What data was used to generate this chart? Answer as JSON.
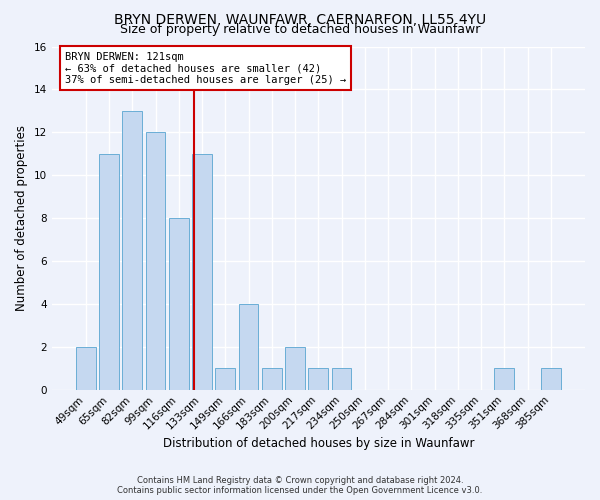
{
  "title": "BRYN DERWEN, WAUNFAWR, CAERNARFON, LL55 4YU",
  "subtitle": "Size of property relative to detached houses in Waunfawr",
  "xlabel": "Distribution of detached houses by size in Waunfawr",
  "ylabel": "Number of detached properties",
  "bar_labels": [
    "49sqm",
    "65sqm",
    "82sqm",
    "99sqm",
    "116sqm",
    "133sqm",
    "149sqm",
    "166sqm",
    "183sqm",
    "200sqm",
    "217sqm",
    "234sqm",
    "250sqm",
    "267sqm",
    "284sqm",
    "301sqm",
    "318sqm",
    "335sqm",
    "351sqm",
    "368sqm",
    "385sqm"
  ],
  "bar_values": [
    2,
    11,
    13,
    12,
    8,
    11,
    1,
    4,
    1,
    2,
    1,
    1,
    0,
    0,
    0,
    0,
    0,
    0,
    1,
    0,
    1
  ],
  "bar_color": "#c5d8f0",
  "bar_edgecolor": "#6aaed6",
  "bar_linewidth": 0.7,
  "bar_width": 0.85,
  "vline_x": 4.65,
  "vline_color": "#cc0000",
  "vline_linewidth": 1.5,
  "annotation_text_line1": "BRYN DERWEN: 121sqm",
  "annotation_text_line2": "← 63% of detached houses are smaller (42)",
  "annotation_text_line3": "37% of semi-detached houses are larger (25) →",
  "annotation_box_edgecolor": "#cc0000",
  "annotation_box_facecolor": "white",
  "ylim_min": 0,
  "ylim_max": 16,
  "yticks": [
    0,
    2,
    4,
    6,
    8,
    10,
    12,
    14,
    16
  ],
  "title_fontsize": 10,
  "subtitle_fontsize": 9,
  "xlabel_fontsize": 8.5,
  "ylabel_fontsize": 8.5,
  "tick_fontsize": 7.5,
  "annot_fontsize": 7.5,
  "background_color": "#eef2fb",
  "grid_color": "white",
  "footer_text": "Contains HM Land Registry data © Crown copyright and database right 2024.\nContains public sector information licensed under the Open Government Licence v3.0."
}
